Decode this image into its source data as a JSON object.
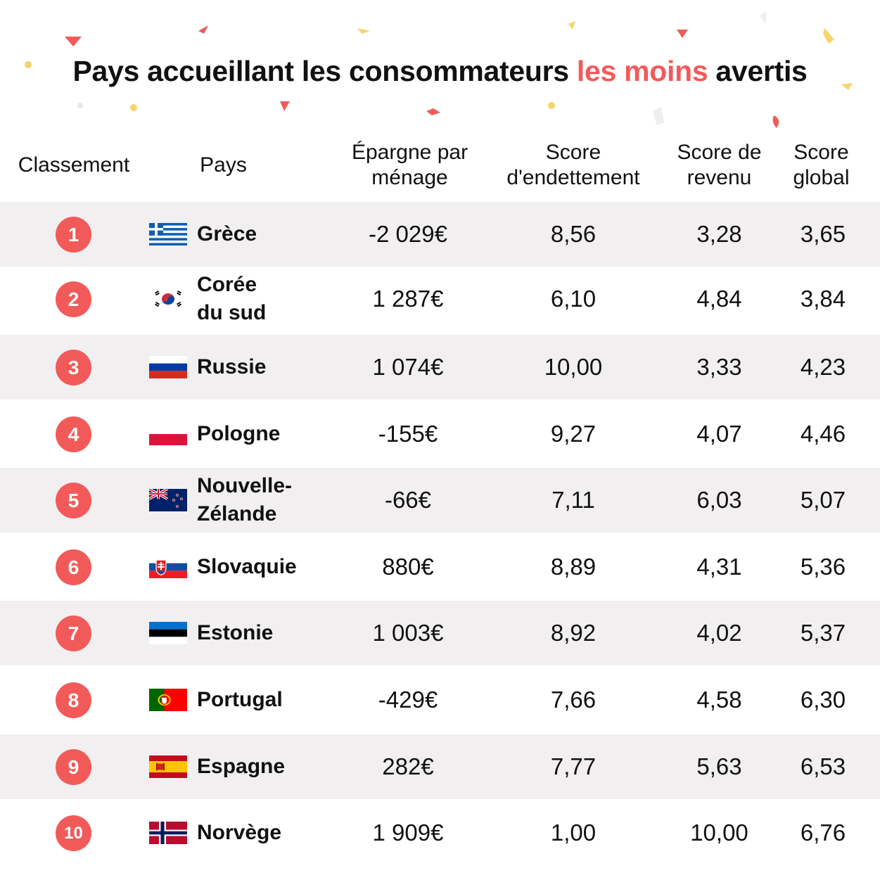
{
  "title": {
    "part1": "Pays accueillant les consommateurs ",
    "highlight": "les moins",
    "part2": " avertis"
  },
  "colors": {
    "accent": "#f25a5a",
    "row_shade": "#f2eff0",
    "text": "#111111"
  },
  "table": {
    "headers": {
      "rank": "Classement",
      "country": "Pays",
      "savings": {
        "line1": "Épargne par",
        "line2": "ménage"
      },
      "debt": {
        "line1": "Score",
        "line2": "d'endettement"
      },
      "income": {
        "line1": "Score de",
        "line2": "revenu"
      },
      "overall": {
        "line1": "Score",
        "line2": "global"
      }
    },
    "rows": [
      {
        "rank": "1",
        "flag": "greece-flag-icon",
        "country": {
          "line1": "Grèce",
          "line2": ""
        },
        "savings": "-2 029€",
        "debt": "8,56",
        "income": "3,28",
        "overall": "3,65"
      },
      {
        "rank": "2",
        "flag": "south-korea-flag-icon",
        "country": {
          "line1": "Corée",
          "line2": "du sud"
        },
        "savings": "1 287€",
        "debt": "6,10",
        "income": "4,84",
        "overall": "3,84"
      },
      {
        "rank": "3",
        "flag": "russia-flag-icon",
        "country": {
          "line1": "Russie",
          "line2": ""
        },
        "savings": "1 074€",
        "debt": "10,00",
        "income": "3,33",
        "overall": "4,23"
      },
      {
        "rank": "4",
        "flag": "poland-flag-icon",
        "country": {
          "line1": "Pologne",
          "line2": ""
        },
        "savings": "-155€",
        "debt": "9,27",
        "income": "4,07",
        "overall": "4,46"
      },
      {
        "rank": "5",
        "flag": "new-zealand-flag-icon",
        "country": {
          "line1": "Nouvelle-",
          "line2": "Zélande"
        },
        "savings": "-66€",
        "debt": "7,11",
        "income": "6,03",
        "overall": "5,07"
      },
      {
        "rank": "6",
        "flag": "slovakia-flag-icon",
        "country": {
          "line1": "Slovaquie",
          "line2": ""
        },
        "savings": "880€",
        "debt": "8,89",
        "income": "4,31",
        "overall": "5,36"
      },
      {
        "rank": "7",
        "flag": "estonia-flag-icon",
        "country": {
          "line1": "Estonie",
          "line2": ""
        },
        "savings": "1 003€",
        "debt": "8,92",
        "income": "4,02",
        "overall": "5,37"
      },
      {
        "rank": "8",
        "flag": "portugal-flag-icon",
        "country": {
          "line1": "Portugal",
          "line2": ""
        },
        "savings": "-429€",
        "debt": "7,66",
        "income": "4,58",
        "overall": "6,30"
      },
      {
        "rank": "9",
        "flag": "spain-flag-icon",
        "country": {
          "line1": "Espagne",
          "line2": ""
        },
        "savings": "282€",
        "debt": "7,77",
        "income": "5,63",
        "overall": "6,53"
      },
      {
        "rank": "10",
        "flag": "norway-flag-icon",
        "country": {
          "line1": "Norvège",
          "line2": ""
        },
        "savings": "1 909€",
        "debt": "1,00",
        "income": "10,00",
        "overall": "6,76"
      }
    ]
  }
}
